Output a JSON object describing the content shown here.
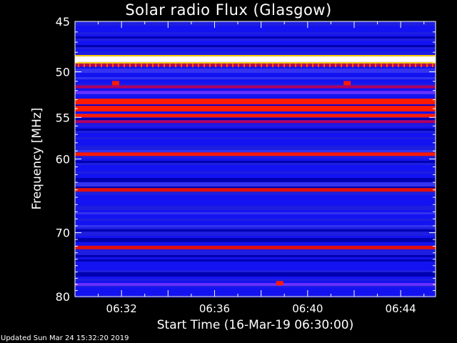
{
  "chart_data": {
    "type": "heatmap",
    "title": "Solar radio Flux (Glasgow)",
    "ylabel": "Frequency [MHz]",
    "xlabel": "Start Time (16-Mar-19 06:30:00)",
    "footer": "Updated Sun Mar 24 15:32:20 2019",
    "y_axis": {
      "min": 45,
      "max": 80,
      "inverted": true,
      "major_ticks": [
        45,
        50,
        55,
        60,
        70,
        80
      ],
      "scale": "log"
    },
    "x_axis": {
      "min_minutes": 0,
      "max_minutes": 15.5,
      "tick_labels": [
        "06:32",
        "06:36",
        "06:40",
        "06:44"
      ],
      "tick_minutes": [
        2,
        6,
        10,
        14
      ]
    },
    "colors": {
      "background": "#000000",
      "low": "#0000c8",
      "mid": "#3a3aff",
      "high": "#ff2000",
      "peak": "#ffffff"
    },
    "bands": [
      {
        "f": 48.7,
        "intensity": 1.0
      },
      {
        "f": 49.3,
        "intensity": 0.55
      },
      {
        "f": 51.6,
        "intensity": 0.45
      },
      {
        "f": 52.2,
        "intensity": 0.3
      },
      {
        "f": 53.2,
        "intensity": 0.9
      },
      {
        "f": 54.0,
        "intensity": 0.95
      },
      {
        "f": 54.8,
        "intensity": 0.85
      },
      {
        "f": 55.5,
        "intensity": 0.5
      },
      {
        "f": 59.4,
        "intensity": 0.85
      },
      {
        "f": 64.0,
        "intensity": 0.7
      },
      {
        "f": 72.2,
        "intensity": 0.65
      },
      {
        "f": 78.0,
        "intensity": 0.35
      }
    ],
    "bursts": [
      {
        "t_minutes": 1.75,
        "f": 51.2
      },
      {
        "t_minutes": 11.7,
        "f": 51.2
      },
      {
        "t_minutes": 8.8,
        "f": 77.8
      }
    ]
  }
}
